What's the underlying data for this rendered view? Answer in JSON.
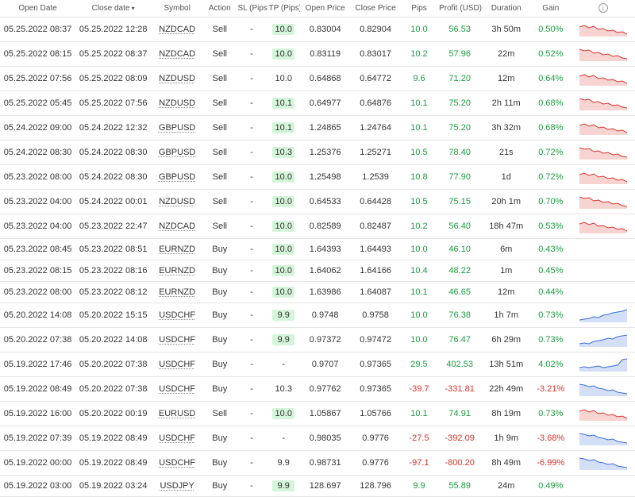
{
  "columns": {
    "open_date": "Open Date",
    "close_date": "Close date",
    "symbol": "Symbol",
    "action": "Action",
    "sl": "SL\n(Pips)",
    "tp": "TP\n(Pips)",
    "open_price": "Open Price",
    "close_price": "Close Price",
    "pips": "Pips",
    "profit": "Profit\n(USD)",
    "duration": "Duration",
    "gain": "Gain"
  },
  "colors": {
    "positive": "#1a9e3e",
    "negative": "#d9342b",
    "tp_highlight_bg": "#d4f5d9",
    "spark_red_stroke": "#d9342b",
    "spark_red_fill": "#f7d4d2",
    "spark_blue_stroke": "#3b6fd9",
    "spark_blue_fill": "#d2dff7",
    "row_border": "#e5e5e5"
  },
  "spark_shapes": {
    "red_down": "0,6 6,4 12,7 18,5 24,9 30,8 36,11 42,10 48,13 54,12 60,15",
    "red_down2": "0,3 6,5 12,4 18,8 24,7 30,10 36,9 42,12 48,11 54,14 60,15",
    "blue_up": "0,15 6,14 12,13 18,11 24,12 30,9 36,8 42,6 48,5 54,4 60,2",
    "blue_up2": "0,14 6,13 12,14 18,11 24,10 30,9 36,7 42,8 48,5 54,4 60,3",
    "blue_down": "0,3 6,4 12,6 18,5 24,8 30,9 36,11 42,10 48,13 54,14 60,15",
    "blue_spike": "0,13 6,12 12,13 18,12 24,11 30,13 36,12 42,11 48,10 54,3 60,2"
  },
  "rows": [
    {
      "open": "05.25.2022 08:37",
      "close": "05.25.2022 12:28",
      "sym": "NZDCAD",
      "act": "Sell",
      "sl": "-",
      "tp": "10.0",
      "tp_hl": true,
      "op": "0.83004",
      "cp": "0.82904",
      "pips": "10.0",
      "pips_pos": true,
      "prof": "56.53",
      "prof_pos": true,
      "dur": "3h 50m",
      "gain": "0.50%",
      "gain_pos": true,
      "spark": "red_down"
    },
    {
      "open": "05.25.2022 08:15",
      "close": "05.25.2022 08:37",
      "sym": "NZDCAD",
      "act": "Sell",
      "sl": "-",
      "tp": "10.0",
      "tp_hl": true,
      "op": "0.83119",
      "cp": "0.83017",
      "pips": "10.2",
      "pips_pos": true,
      "prof": "57.96",
      "prof_pos": true,
      "dur": "22m",
      "gain": "0.52%",
      "gain_pos": true,
      "spark": "red_down2"
    },
    {
      "open": "05.25.2022 07:56",
      "close": "05.25.2022 08:09",
      "sym": "NZDUSD",
      "act": "Sell",
      "sl": "-",
      "tp": "10.0",
      "tp_hl": false,
      "op": "0.64868",
      "cp": "0.64772",
      "pips": "9.6",
      "pips_pos": true,
      "prof": "71.20",
      "prof_pos": true,
      "dur": "12m",
      "gain": "0.64%",
      "gain_pos": true,
      "spark": "red_down"
    },
    {
      "open": "05.25.2022 05:45",
      "close": "05.25.2022 07:56",
      "sym": "NZDUSD",
      "act": "Sell",
      "sl": "-",
      "tp": "10.1",
      "tp_hl": true,
      "op": "0.64977",
      "cp": "0.64876",
      "pips": "10.1",
      "pips_pos": true,
      "prof": "75.20",
      "prof_pos": true,
      "dur": "2h 11m",
      "gain": "0.68%",
      "gain_pos": true,
      "spark": "red_down2"
    },
    {
      "open": "05.24.2022 09:00",
      "close": "05.24.2022 12:32",
      "sym": "GBPUSD",
      "act": "Sell",
      "sl": "-",
      "tp": "10.1",
      "tp_hl": true,
      "op": "1.24865",
      "cp": "1.24764",
      "pips": "10.1",
      "pips_pos": true,
      "prof": "75.20",
      "prof_pos": true,
      "dur": "3h 32m",
      "gain": "0.68%",
      "gain_pos": true,
      "spark": "red_down"
    },
    {
      "open": "05.24.2022 08:30",
      "close": "05.24.2022 08:30",
      "sym": "GBPUSD",
      "act": "Sell",
      "sl": "-",
      "tp": "10.3",
      "tp_hl": true,
      "op": "1.25376",
      "cp": "1.25271",
      "pips": "10.5",
      "pips_pos": true,
      "prof": "78.40",
      "prof_pos": true,
      "dur": "21s",
      "gain": "0.72%",
      "gain_pos": true,
      "spark": "red_down2"
    },
    {
      "open": "05.23.2022 08:00",
      "close": "05.24.2022 08:30",
      "sym": "GBPUSD",
      "act": "Sell",
      "sl": "-",
      "tp": "10.0",
      "tp_hl": true,
      "op": "1.25498",
      "cp": "1.2539",
      "pips": "10.8",
      "pips_pos": true,
      "prof": "77.90",
      "prof_pos": true,
      "dur": "1d",
      "gain": "0.72%",
      "gain_pos": true,
      "spark": "red_down"
    },
    {
      "open": "05.23.2022 04:00",
      "close": "05.24.2022 00:01",
      "sym": "NZDUSD",
      "act": "Sell",
      "sl": "-",
      "tp": "10.0",
      "tp_hl": true,
      "op": "0.64533",
      "cp": "0.64428",
      "pips": "10.5",
      "pips_pos": true,
      "prof": "75.15",
      "prof_pos": true,
      "dur": "20h 1m",
      "gain": "0.70%",
      "gain_pos": true,
      "spark": "red_down2"
    },
    {
      "open": "05.23.2022 04:00",
      "close": "05.23.2022 22:47",
      "sym": "NZDCAD",
      "act": "Sell",
      "sl": "-",
      "tp": "10.0",
      "tp_hl": true,
      "op": "0.82589",
      "cp": "0.82487",
      "pips": "10.2",
      "pips_pos": true,
      "prof": "56.40",
      "prof_pos": true,
      "dur": "18h 47m",
      "gain": "0.53%",
      "gain_pos": true,
      "spark": "red_down"
    },
    {
      "open": "05.23.2022 08:45",
      "close": "05.23.2022 08:51",
      "sym": "EURNZD",
      "act": "Buy",
      "sl": "-",
      "tp": "10.0",
      "tp_hl": true,
      "op": "1.64393",
      "cp": "1.64493",
      "pips": "10.0",
      "pips_pos": true,
      "prof": "46.10",
      "prof_pos": true,
      "dur": "6m",
      "gain": "0.43%",
      "gain_pos": true,
      "spark": ""
    },
    {
      "open": "05.23.2022 08:15",
      "close": "05.23.2022 08:16",
      "sym": "EURNZD",
      "act": "Buy",
      "sl": "-",
      "tp": "10.0",
      "tp_hl": true,
      "op": "1.64062",
      "cp": "1.64166",
      "pips": "10.4",
      "pips_pos": true,
      "prof": "48.22",
      "prof_pos": true,
      "dur": "1m",
      "gain": "0.45%",
      "gain_pos": true,
      "spark": ""
    },
    {
      "open": "05.23.2022 08:00",
      "close": "05.23.2022 08:12",
      "sym": "EURNZD",
      "act": "Buy",
      "sl": "-",
      "tp": "10.0",
      "tp_hl": true,
      "op": "1.63986",
      "cp": "1.64087",
      "pips": "10.1",
      "pips_pos": true,
      "prof": "46.65",
      "prof_pos": true,
      "dur": "12m",
      "gain": "0.44%",
      "gain_pos": true,
      "spark": ""
    },
    {
      "open": "05.20.2022 14:08",
      "close": "05.20.2022 15:15",
      "sym": "USDCHF",
      "act": "Buy",
      "sl": "-",
      "tp": "9.9",
      "tp_hl": true,
      "op": "0.9748",
      "cp": "0.9758",
      "pips": "10.0",
      "pips_pos": true,
      "prof": "76.38",
      "prof_pos": true,
      "dur": "1h 7m",
      "gain": "0.73%",
      "gain_pos": true,
      "spark": "blue_up"
    },
    {
      "open": "05.20.2022 07:38",
      "close": "05.20.2022 14:08",
      "sym": "USDCHF",
      "act": "Buy",
      "sl": "-",
      "tp": "9.9",
      "tp_hl": true,
      "op": "0.97372",
      "cp": "0.97472",
      "pips": "10.0",
      "pips_pos": true,
      "prof": "76.47",
      "prof_pos": true,
      "dur": "6h 29m",
      "gain": "0.73%",
      "gain_pos": true,
      "spark": "blue_up2"
    },
    {
      "open": "05.19.2022 17:46",
      "close": "05.20.2022 07:38",
      "sym": "USDCHF",
      "act": "Buy",
      "sl": "-",
      "tp": "-",
      "tp_hl": false,
      "op": "0.9707",
      "cp": "0.97365",
      "pips": "29.5",
      "pips_pos": true,
      "prof": "402.53",
      "prof_pos": true,
      "dur": "13h 51m",
      "gain": "4.02%",
      "gain_pos": true,
      "spark": "blue_spike"
    },
    {
      "open": "05.19.2022 08:49",
      "close": "05.20.2022 07:38",
      "sym": "USDCHF",
      "act": "Buy",
      "sl": "-",
      "tp": "10.3",
      "tp_hl": false,
      "op": "0.97762",
      "cp": "0.97365",
      "pips": "-39.7",
      "pips_pos": false,
      "prof": "-331.81",
      "prof_pos": false,
      "dur": "22h 49m",
      "gain": "-3.21%",
      "gain_pos": false,
      "spark": "blue_down"
    },
    {
      "open": "05.19.2022 16:00",
      "close": "05.20.2022 00:19",
      "sym": "EURUSD",
      "act": "Sell",
      "sl": "-",
      "tp": "10.0",
      "tp_hl": true,
      "op": "1.05867",
      "cp": "1.05766",
      "pips": "10.1",
      "pips_pos": true,
      "prof": "74.91",
      "prof_pos": true,
      "dur": "8h 19m",
      "gain": "0.73%",
      "gain_pos": true,
      "spark": "red_down"
    },
    {
      "open": "05.19.2022 07:39",
      "close": "05.19.2022 08:49",
      "sym": "USDCHF",
      "act": "Buy",
      "sl": "-",
      "tp": "-",
      "tp_hl": false,
      "op": "0.98035",
      "cp": "0.9776",
      "pips": "-27.5",
      "pips_pos": false,
      "prof": "-392.09",
      "prof_pos": false,
      "dur": "1h 9m",
      "gain": "-3.68%",
      "gain_pos": false,
      "spark": "blue_down"
    },
    {
      "open": "05.19.2022 00:00",
      "close": "05.19.2022 08:49",
      "sym": "USDCHF",
      "act": "Buy",
      "sl": "-",
      "tp": "9.9",
      "tp_hl": false,
      "op": "0.98731",
      "cp": "0.9776",
      "pips": "-97.1",
      "pips_pos": false,
      "prof": "-800.20",
      "prof_pos": false,
      "dur": "8h 49m",
      "gain": "-6.99%",
      "gain_pos": false,
      "spark": "blue_down"
    },
    {
      "open": "05.19.2022 03:00",
      "close": "05.19.2022 03:24",
      "sym": "USDJPY",
      "act": "Buy",
      "sl": "-",
      "tp": "9.9",
      "tp_hl": true,
      "op": "128.697",
      "cp": "128.796",
      "pips": "9.9",
      "pips_pos": true,
      "prof": "55.89",
      "prof_pos": true,
      "dur": "24m",
      "gain": "0.49%",
      "gain_pos": true,
      "spark": ""
    }
  ]
}
